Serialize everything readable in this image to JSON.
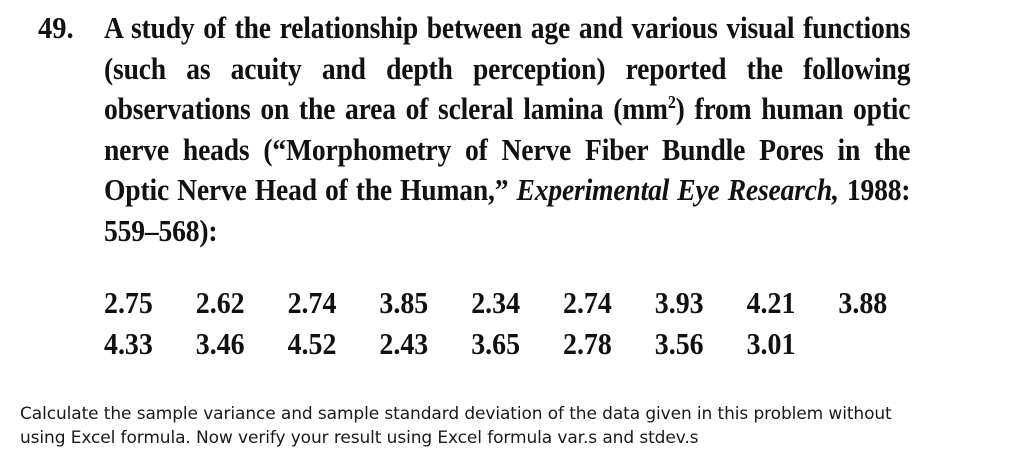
{
  "problem": {
    "number": "49.",
    "intro": "A study of the relationship between age and various visual functions (such as acuity and depth perception) reported the following observations on the area of scleral lamina (mm",
    "unit_sup": "2",
    "after_unit": ") from human optic nerve heads (“Morphometry of Nerve Fiber Bundle Pores in the Optic Nerve Head of the Human,”",
    "journal": "Experimental Eye Research,",
    "citation": " 1988: 559–568):"
  },
  "data": {
    "rows": [
      [
        "2.75",
        "2.62",
        "2.74",
        "3.85",
        "2.34",
        "2.74",
        "3.93",
        "4.21",
        "3.88"
      ],
      [
        "4.33",
        "3.46",
        "4.52",
        "2.43",
        "3.65",
        "2.78",
        "3.56",
        "3.01"
      ]
    ]
  },
  "question": {
    "line1": "Calculate the sample variance and sample standard deviation of the data given in this problem without",
    "line2": "using Excel formula. Now verify your result using Excel formula var.s and stdev.s"
  }
}
